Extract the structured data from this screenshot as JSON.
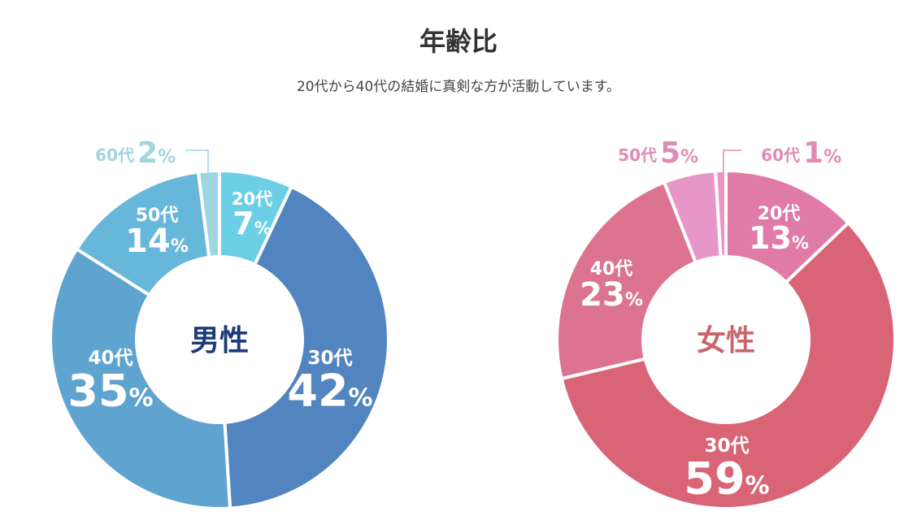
{
  "header": {
    "title": "年齢比",
    "subtitle": "20代から40代の結婚に真剣な方が活動しています。"
  },
  "chart_data": [
    {
      "type": "pie",
      "center_label": "男性",
      "center_color": "#1f3a7a",
      "categories": [
        "20代",
        "30代",
        "40代",
        "50代",
        "60代"
      ],
      "values": [
        7,
        42,
        35,
        14,
        2
      ],
      "unit": "%",
      "colors": [
        "#6dcfe6",
        "#5285c0",
        "#5fa3cf",
        "#66b7da",
        "#9fd5df"
      ],
      "outside_label_color": "#9fd5df"
    },
    {
      "type": "pie",
      "center_label": "女性",
      "center_color": "#c9676f",
      "categories": [
        "20代",
        "30代",
        "40代",
        "50代",
        "60代"
      ],
      "values": [
        13,
        59,
        23,
        5,
        1
      ],
      "unit": "%",
      "colors": [
        "#e07aa6",
        "#d96476",
        "#dc7490",
        "#e796c8",
        "#e896c2"
      ],
      "outside_label_color": "#e08bb6"
    }
  ]
}
